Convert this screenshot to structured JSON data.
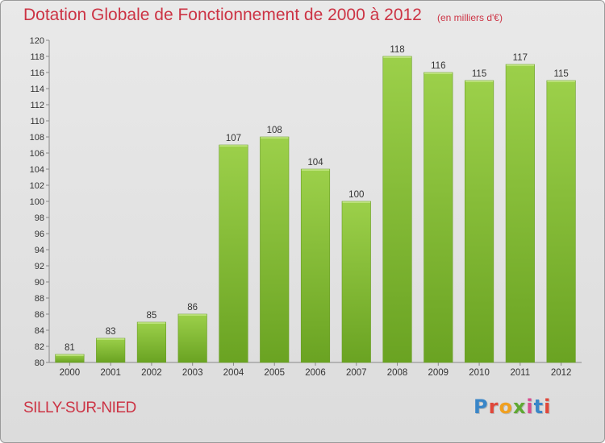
{
  "header": {
    "title": "Dotation Globale de Fonctionnement de 2000 à 2012",
    "unit_note": "(en milliers d'€)"
  },
  "footer": {
    "commune": "SILLY-SUR-NIED",
    "logo_text": "Proxiti",
    "logo_colors": [
      "#3a86c8",
      "#e0473a",
      "#f0a020",
      "#5fa832",
      "#d94a8c",
      "#3a86c8",
      "#e0473a"
    ]
  },
  "chart_data": {
    "type": "bar",
    "categories": [
      "2000",
      "2001",
      "2002",
      "2003",
      "2004",
      "2005",
      "2006",
      "2007",
      "2008",
      "2009",
      "2010",
      "2011",
      "2012"
    ],
    "values": [
      81,
      83,
      85,
      86,
      107,
      108,
      104,
      100,
      118,
      116,
      115,
      117,
      115
    ],
    "ylim": [
      80,
      120
    ],
    "ytick_step": 2,
    "grid": false,
    "bar_color": "#7ab22f",
    "bar_color_light": "#9cd04a"
  }
}
